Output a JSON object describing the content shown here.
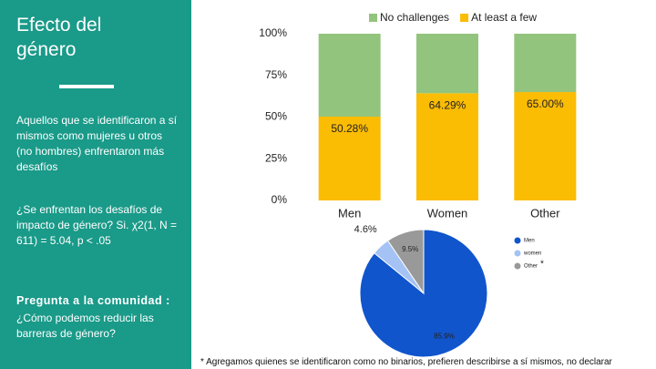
{
  "slide": {
    "title": "Efecto del género",
    "text1": "Aquellos que se identificaron a sí mismos como mujeres u otros (no hombres) enfrentaron más desafíos",
    "text2": "¿Se enfrentan los desafíos de impacto de género? Si. χ2(1, N = 611) = 5.04, p < .05",
    "community_title": "Pregunta a la comunidad :",
    "community_text": "¿Cómo podemos reducir las barreras de género?",
    "legend_note": "*",
    "footnote": "* Agregamos quienes se identificaron como no binarios, prefieren describirse a sí mismos, no declarar"
  },
  "chart_data": [
    {
      "type": "stacked_bar",
      "categories": [
        "Men",
        "Women",
        "Other"
      ],
      "series": [
        {
          "name": "At least a few",
          "color": "#fbbc04",
          "values": [
            50.28,
            64.29,
            65.0
          ],
          "value_labels": [
            "50.28%",
            "64.29%",
            "65.00%"
          ]
        },
        {
          "name": "No challenges",
          "color": "#93c47d",
          "values": [
            49.72,
            35.71,
            35.0
          ]
        }
      ],
      "legend_order": [
        "No challenges",
        "At least a few"
      ],
      "ylim": [
        0,
        100
      ],
      "yticks": [
        {
          "value": 0,
          "label": "0%"
        },
        {
          "value": 25,
          "label": "25%"
        },
        {
          "value": 50,
          "label": "50%"
        },
        {
          "value": 75,
          "label": "75%"
        },
        {
          "value": 100,
          "label": "100%"
        }
      ]
    },
    {
      "type": "pie",
      "categories": [
        "Men",
        "women",
        "Other"
      ],
      "values": [
        85.9,
        4.6,
        9.5
      ],
      "value_labels": [
        "85.9%",
        "4.6%",
        "9.5%"
      ],
      "colors": [
        "#1155cc",
        "#a4c2f4",
        "#999999"
      ]
    }
  ]
}
